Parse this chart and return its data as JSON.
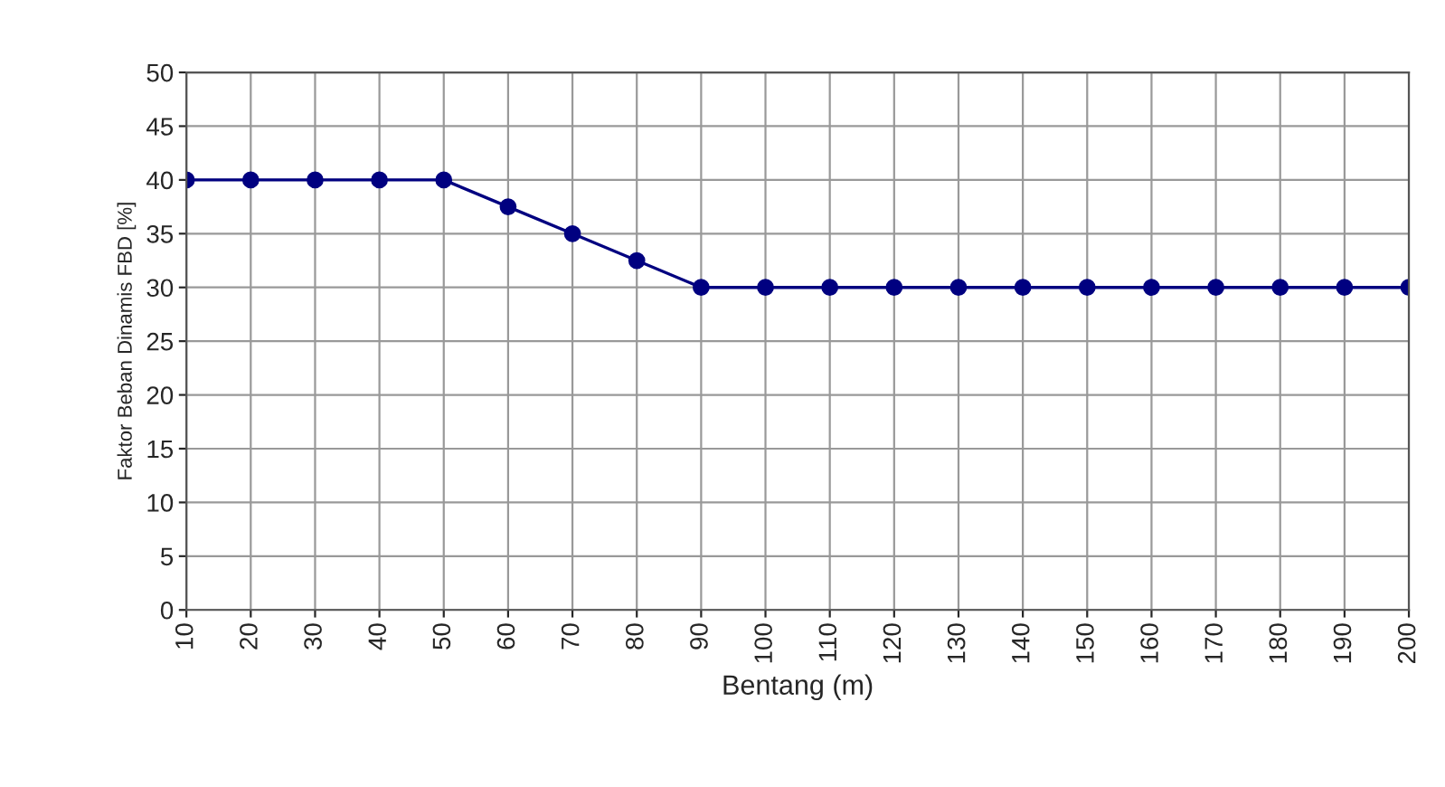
{
  "chart_data": {
    "type": "line",
    "xlabel": "Bentang (m)",
    "ylabel": "Faktor Beban Dinamis FBD [%]",
    "x": [
      10,
      20,
      30,
      40,
      50,
      60,
      70,
      80,
      90,
      100,
      110,
      120,
      130,
      140,
      150,
      160,
      170,
      180,
      190,
      200
    ],
    "series": [
      {
        "color": "#000080",
        "values": [
          40,
          40,
          40,
          40,
          40,
          37.5,
          35,
          32.5,
          30,
          30,
          30,
          30,
          30,
          30,
          30,
          30,
          30,
          30,
          30,
          30
        ]
      }
    ],
    "xlim": [
      10,
      200
    ],
    "xticks": [
      10,
      20,
      30,
      40,
      50,
      60,
      70,
      80,
      90,
      100,
      110,
      120,
      130,
      140,
      150,
      160,
      170,
      180,
      190,
      200
    ],
    "ylim": [
      0,
      50
    ],
    "yticks": [
      0,
      5,
      10,
      15,
      20,
      25,
      30,
      35,
      40,
      45,
      50
    ],
    "grid": true,
    "legend": false,
    "marker": "circle",
    "line_style": "solid"
  }
}
